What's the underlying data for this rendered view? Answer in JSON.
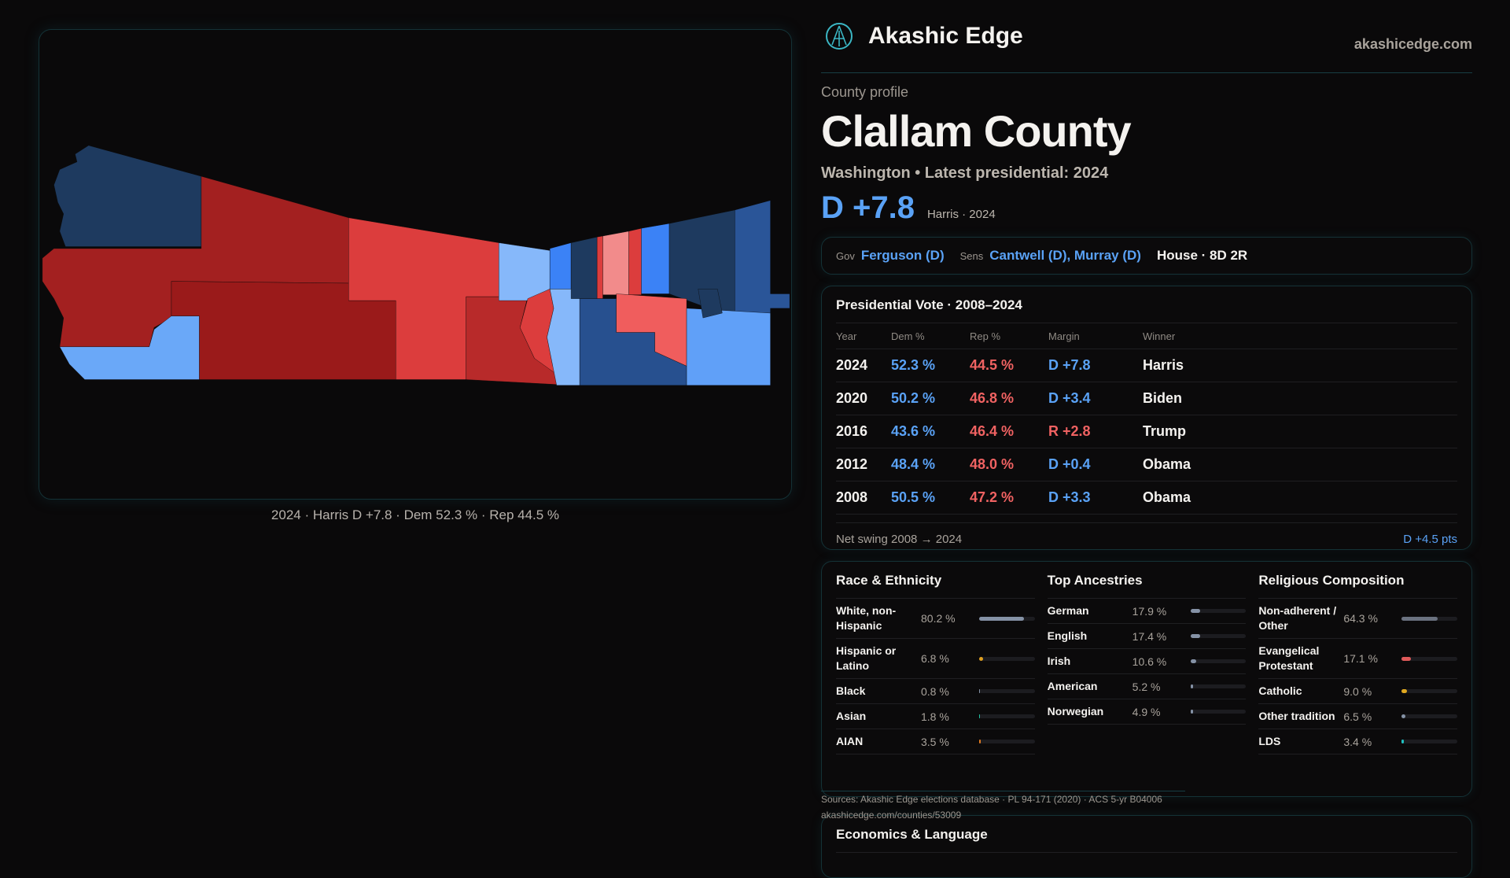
{
  "header": {
    "brand": "Akashic Edge",
    "site": "akashicedge.com"
  },
  "profile": {
    "kicker": "County profile",
    "title": "Clallam County",
    "subtitle": "Washington • Latest presidential: 2024",
    "margin": "D +7.8",
    "margin_sub": "Harris · 2024"
  },
  "officials": {
    "gov_label": "Gov",
    "gov": "Ferguson (D)",
    "sens_label": "Sens",
    "sens": "Cantwell (D), Murray (D)",
    "house": "House · 8D 2R"
  },
  "map": {
    "caption": "2024 · Harris D +7.8 · Dem 52.3 % · Rep 44.5 %"
  },
  "presidential": {
    "title": "Presidential Vote · 2008–2024",
    "headers": [
      "Year",
      "Dem %",
      "Rep %",
      "Margin",
      "Winner"
    ],
    "rows": [
      {
        "year": "2024",
        "dem": "52.3 %",
        "rep": "44.5 %",
        "margin": "D +7.8",
        "winner": "Harris",
        "party": "D"
      },
      {
        "year": "2020",
        "dem": "50.2 %",
        "rep": "46.8 %",
        "margin": "D +3.4",
        "winner": "Biden",
        "party": "D"
      },
      {
        "year": "2016",
        "dem": "43.6 %",
        "rep": "46.4 %",
        "margin": "R +2.8",
        "winner": "Trump",
        "party": "R"
      },
      {
        "year": "2012",
        "dem": "48.4 %",
        "rep": "48.0 %",
        "margin": "D +0.4",
        "winner": "Obama",
        "party": "D"
      },
      {
        "year": "2008",
        "dem": "50.5 %",
        "rep": "47.2 %",
        "margin": "D +3.3",
        "winner": "Obama",
        "party": "D"
      }
    ],
    "swing_label": "Net swing 2008 → 2024",
    "swing_value": "D +4.5 pts"
  },
  "race": {
    "title": "Race & Ethnicity",
    "items": [
      {
        "name": "White, non-Hispanic",
        "value": "80.2 %",
        "pct": 80.2,
        "color": "#8592a6"
      },
      {
        "name": "Hispanic or Latino",
        "value": "6.8 %",
        "pct": 6.8,
        "color": "#e0a020"
      },
      {
        "name": "Black",
        "value": "0.8 %",
        "pct": 0.8,
        "color": "#8592a6"
      },
      {
        "name": "Asian",
        "value": "1.8 %",
        "pct": 1.8,
        "color": "#20c0a0"
      },
      {
        "name": "AIAN",
        "value": "3.5 %",
        "pct": 3.5,
        "color": "#e07a20"
      }
    ]
  },
  "ancestry": {
    "title": "Top Ancestries",
    "items": [
      {
        "name": "German",
        "value": "17.9 %",
        "pct": 17.9,
        "color": "#8592a6"
      },
      {
        "name": "English",
        "value": "17.4 %",
        "pct": 17.4,
        "color": "#8592a6"
      },
      {
        "name": "Irish",
        "value": "10.6 %",
        "pct": 10.6,
        "color": "#8592a6"
      },
      {
        "name": "American",
        "value": "5.2 %",
        "pct": 5.2,
        "color": "#8592a6"
      },
      {
        "name": "Norwegian",
        "value": "4.9 %",
        "pct": 4.9,
        "color": "#8592a6"
      }
    ]
  },
  "religion": {
    "title": "Religious Composition",
    "items": [
      {
        "name": "Non-adherent / Other",
        "value": "64.3 %",
        "pct": 64.3,
        "color": "#6b7280"
      },
      {
        "name": "Evangelical Protestant",
        "value": "17.1 %",
        "pct": 17.1,
        "color": "#e05a5a"
      },
      {
        "name": "Catholic",
        "value": "9.0 %",
        "pct": 9.0,
        "color": "#e0a820"
      },
      {
        "name": "Other tradition",
        "value": "6.5 %",
        "pct": 6.5,
        "color": "#8592a6"
      },
      {
        "name": "LDS",
        "value": "3.4 %",
        "pct": 3.4,
        "color": "#20c0c0"
      }
    ]
  },
  "footer": {
    "sources": "Sources: Akashic Edge elections database · PL 94-171 (2020) · ACS 5-yr B04006",
    "url": "akashicedge.com/counties/53009"
  },
  "economics": {
    "title": "Economics & Language"
  }
}
